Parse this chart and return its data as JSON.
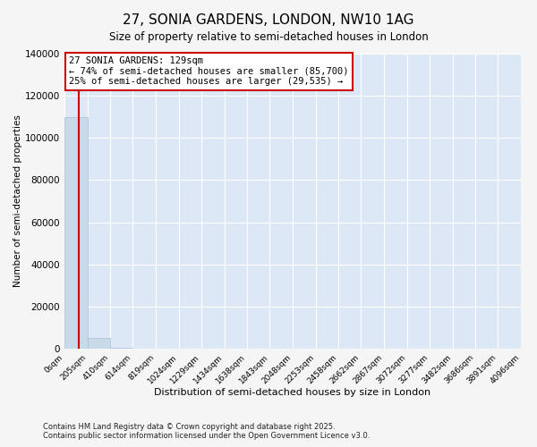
{
  "title": "27, SONIA GARDENS, LONDON, NW10 1AG",
  "subtitle": "Size of property relative to semi-detached houses in London",
  "xlabel": "Distribution of semi-detached houses by size in London",
  "ylabel": "Number of semi-detached properties",
  "bin_edges": [
    0,
    205,
    410,
    614,
    819,
    1024,
    1229,
    1434,
    1638,
    1843,
    2048,
    2253,
    2458,
    2662,
    2867,
    3072,
    3277,
    3482,
    3686,
    3891,
    4096
  ],
  "bin_labels": [
    "0sqm",
    "205sqm",
    "410sqm",
    "614sqm",
    "819sqm",
    "1024sqm",
    "1229sqm",
    "1434sqm",
    "1638sqm",
    "1843sqm",
    "2048sqm",
    "2253sqm",
    "2458sqm",
    "2662sqm",
    "2867sqm",
    "3072sqm",
    "3277sqm",
    "3482sqm",
    "3686sqm",
    "3891sqm",
    "4096sqm"
  ],
  "bar_heights": [
    110000,
    5000,
    500,
    200,
    100,
    60,
    40,
    30,
    20,
    15,
    10,
    8,
    6,
    5,
    4,
    3,
    3,
    2,
    2,
    1
  ],
  "bar_color": "#c8d9ea",
  "bar_edge_color": "#a8c0d8",
  "property_size": 129,
  "red_line_color": "#cc0000",
  "annotation_title": "27 SONIA GARDENS: 129sqm",
  "annotation_line1": "← 74% of semi-detached houses are smaller (85,700)",
  "annotation_line2": "25% of semi-detached houses are larger (29,535) →",
  "annotation_box_color": "#ffffff",
  "annotation_box_edge": "#cc0000",
  "ylim": [
    0,
    140000
  ],
  "yticks": [
    0,
    20000,
    40000,
    60000,
    80000,
    100000,
    120000,
    140000
  ],
  "background_color": "#dce8f5",
  "fig_background": "#f5f5f5",
  "footer_line1": "Contains HM Land Registry data © Crown copyright and database right 2025.",
  "footer_line2": "Contains public sector information licensed under the Open Government Licence v3.0."
}
